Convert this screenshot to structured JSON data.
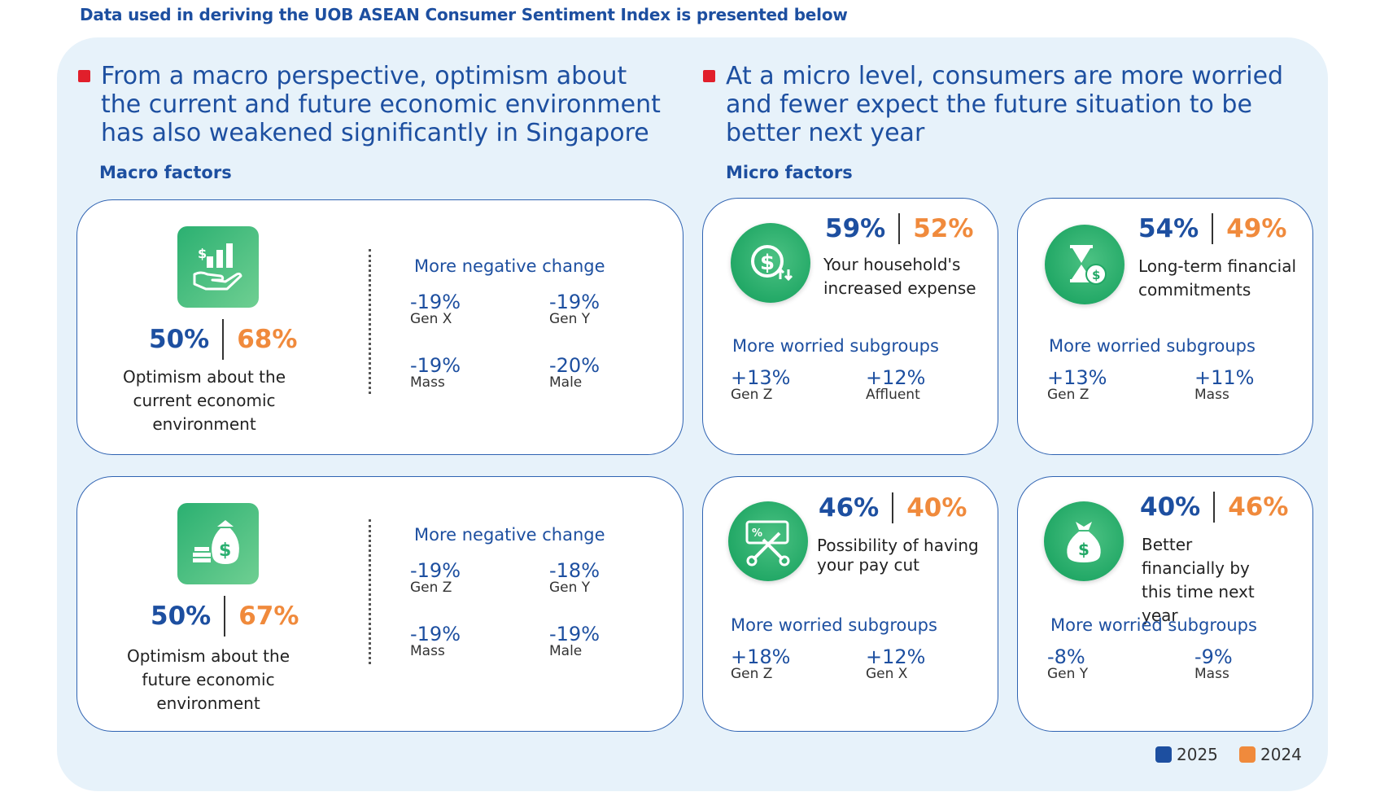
{
  "top_note": "Data used in deriving the UOB ASEAN Consumer Sentiment Index is presented below",
  "left_heading": "From a macro perspective, optimism about the current and future economic environment has also weakened significantly in Singapore",
  "right_heading": "At a micro level, consumers are more worried and fewer expect the future situation to be better next year",
  "macro_label": "Macro factors",
  "micro_label": "Micro factors",
  "colors": {
    "y2025": "#1d4fa0",
    "y2024": "#f08a3c",
    "bullet": "#e11f2b",
    "icon_green": "#2bb071",
    "panel": "#e7f2fa"
  },
  "macro": [
    {
      "icon": "hand-money-chart-icon",
      "pct_2025": "50%",
      "pct_2024": "68%",
      "desc": "Optimism about the current economic environment",
      "subtitle": "More negative change",
      "stats": [
        {
          "value": "-19%",
          "group": "Gen X"
        },
        {
          "value": "-19%",
          "group": "Gen Y"
        },
        {
          "value": "-19%",
          "group": "Mass"
        },
        {
          "value": "-20%",
          "group": "Male"
        }
      ]
    },
    {
      "icon": "money-bag-coins-icon",
      "pct_2025": "50%",
      "pct_2024": "67%",
      "desc": "Optimism about the future economic environment",
      "subtitle": "More negative change",
      "stats": [
        {
          "value": "-19%",
          "group": "Gen Z"
        },
        {
          "value": "-18%",
          "group": "Gen Y"
        },
        {
          "value": "-19%",
          "group": "Mass"
        },
        {
          "value": "-19%",
          "group": "Male"
        }
      ]
    }
  ],
  "micro": [
    {
      "icon": "dollar-up-down-icon",
      "pct_2025": "59%",
      "pct_2024": "52%",
      "desc": "Your household's increased expense",
      "subtitle": "More worried subgroups",
      "stats": [
        {
          "value": "+13%",
          "group": "Gen Z"
        },
        {
          "value": "+12%",
          "group": "Affluent"
        }
      ]
    },
    {
      "icon": "hourglass-coin-icon",
      "pct_2025": "54%",
      "pct_2024": "49%",
      "desc": "Long-term financial commitments",
      "subtitle": "More worried subgroups",
      "stats": [
        {
          "value": "+13%",
          "group": "Gen Z"
        },
        {
          "value": "+11%",
          "group": "Mass"
        }
      ]
    },
    {
      "icon": "pay-cut-scissors-icon",
      "pct_2025": "46%",
      "pct_2024": "40%",
      "desc": "Possibility of having your pay cut",
      "subtitle": "More worried subgroups",
      "stats": [
        {
          "value": "+18%",
          "group": "Gen Z"
        },
        {
          "value": "+12%",
          "group": "Gen X"
        }
      ]
    },
    {
      "icon": "money-bag-icon",
      "pct_2025": "40%",
      "pct_2024": "46%",
      "desc": "Better financially by this time next year",
      "subtitle": "More worried subgroups",
      "stats": [
        {
          "value": "-8%",
          "group": "Gen Y"
        },
        {
          "value": "-9%",
          "group": "Mass"
        }
      ]
    }
  ],
  "legend": [
    {
      "label": "2025",
      "color": "#1d4fa0"
    },
    {
      "label": "2024",
      "color": "#f08a3c"
    }
  ]
}
